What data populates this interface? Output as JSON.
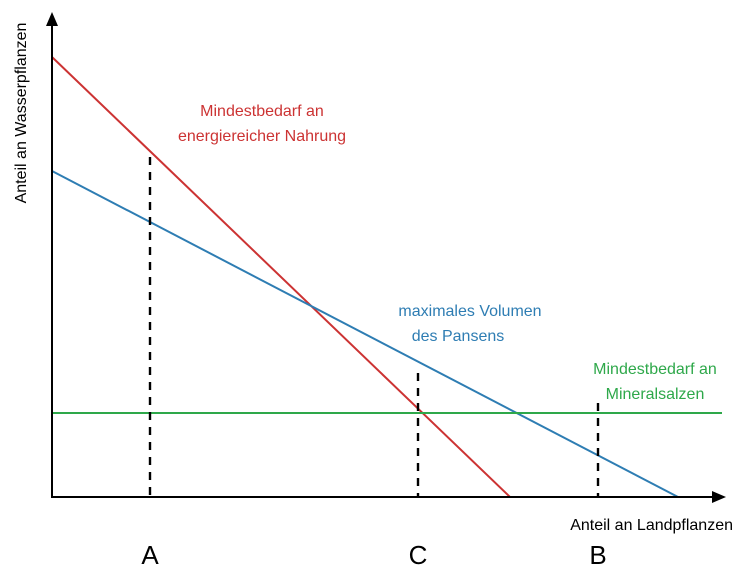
{
  "chart_data": {
    "type": "line",
    "xlabel": "Anteil an Landpflanzen",
    "ylabel": "Anteil an Wasserpflanzen",
    "xlim": [
      0,
      670
    ],
    "ylim": [
      0,
      440
    ],
    "series": [
      {
        "name": "Mindestbedarf an energiereicher Nahrung",
        "label_lines": [
          "Mindestbedarf an",
          "energiereicher Nahrung"
        ],
        "color": "#cc3333",
        "points": [
          {
            "x": 0,
            "y": 440
          },
          {
            "x": 458,
            "y": 0
          }
        ]
      },
      {
        "name": "maximales Volumen des Pansens",
        "label_lines": [
          "maximales Volumen",
          "des Pansens"
        ],
        "color": "#2e7db3",
        "points": [
          {
            "x": 0,
            "y": 326
          },
          {
            "x": 626,
            "y": 0
          }
        ]
      },
      {
        "name": "Mindestbedarf an Mineralsalzen",
        "label_lines": [
          "Mindestbedarf an",
          "Mineralsalzen"
        ],
        "color": "#2ea84a",
        "points": [
          {
            "x": 0,
            "y": 84
          },
          {
            "x": 670,
            "y": 84
          }
        ]
      }
    ],
    "reference_points": [
      {
        "label": "A",
        "x": 98,
        "y_top": 340
      },
      {
        "label": "C",
        "x": 366,
        "y_top": 124
      },
      {
        "label": "B",
        "x": 546,
        "y_top": 94
      }
    ],
    "grid": false,
    "legend": "none"
  }
}
